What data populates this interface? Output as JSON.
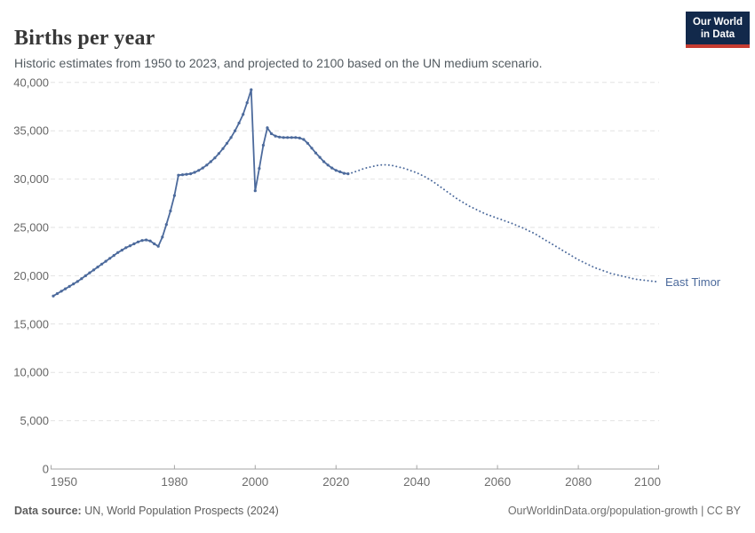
{
  "header": {
    "title": "Births per year",
    "subtitle": "Historic estimates from 1950 to 2023, and projected to 2100 based on the UN medium scenario."
  },
  "logo": {
    "line1": "Our World",
    "line2": "in Data"
  },
  "footer": {
    "source_label": "Data source:",
    "source_text": " UN, World Population Prospects (2024)",
    "credit": "OurWorldinData.org/population-growth | CC BY"
  },
  "colors": {
    "line": "#4c6a9c",
    "axis": "#a5a5a5",
    "grid": "#e2e2e2",
    "tick_text": "#666666",
    "logo_bg": "#12294b",
    "logo_accent": "#c63c31"
  },
  "chart_data": {
    "type": "line",
    "title": "Births per year",
    "xlabel": "",
    "ylabel": "",
    "xlim": [
      1950,
      2100
    ],
    "ylim": [
      0,
      40000
    ],
    "grid": "horizontal-dashed",
    "legend_position": "end-of-line-label",
    "x_ticks": [
      {
        "v": 1950,
        "label": "1950"
      },
      {
        "v": 1980,
        "label": "1980"
      },
      {
        "v": 2000,
        "label": "2000"
      },
      {
        "v": 2020,
        "label": "2020"
      },
      {
        "v": 2040,
        "label": "2040"
      },
      {
        "v": 2060,
        "label": "2060"
      },
      {
        "v": 2080,
        "label": "2080"
      },
      {
        "v": 2100,
        "label": "2100"
      }
    ],
    "y_ticks": [
      {
        "v": 0,
        "label": "0"
      },
      {
        "v": 5000,
        "label": "5,000"
      },
      {
        "v": 10000,
        "label": "10,000"
      },
      {
        "v": 15000,
        "label": "15,000"
      },
      {
        "v": 20000,
        "label": "20,000"
      },
      {
        "v": 25000,
        "label": "25,000"
      },
      {
        "v": 30000,
        "label": "30,000"
      },
      {
        "v": 35000,
        "label": "35,000"
      },
      {
        "v": 40000,
        "label": "40,000"
      }
    ],
    "annotation": {
      "text": "East Timor",
      "y": 19350
    },
    "series": [
      {
        "name": "East Timor — historic estimates (1950–2023)",
        "style": "solid",
        "markers": true,
        "points": [
          [
            1950,
            17900
          ],
          [
            1951,
            18150
          ],
          [
            1952,
            18400
          ],
          [
            1953,
            18650
          ],
          [
            1954,
            18900
          ],
          [
            1955,
            19150
          ],
          [
            1956,
            19400
          ],
          [
            1957,
            19700
          ],
          [
            1958,
            20000
          ],
          [
            1959,
            20300
          ],
          [
            1960,
            20600
          ],
          [
            1961,
            20900
          ],
          [
            1962,
            21200
          ],
          [
            1963,
            21500
          ],
          [
            1964,
            21800
          ],
          [
            1965,
            22100
          ],
          [
            1966,
            22400
          ],
          [
            1967,
            22650
          ],
          [
            1968,
            22900
          ],
          [
            1969,
            23100
          ],
          [
            1970,
            23300
          ],
          [
            1971,
            23500
          ],
          [
            1972,
            23650
          ],
          [
            1973,
            23700
          ],
          [
            1974,
            23600
          ],
          [
            1975,
            23300
          ],
          [
            1976,
            23050
          ],
          [
            1977,
            24000
          ],
          [
            1978,
            25300
          ],
          [
            1979,
            26700
          ],
          [
            1980,
            28300
          ],
          [
            1981,
            30400
          ],
          [
            1982,
            30450
          ],
          [
            1983,
            30500
          ],
          [
            1984,
            30550
          ],
          [
            1985,
            30700
          ],
          [
            1986,
            30900
          ],
          [
            1987,
            31150
          ],
          [
            1988,
            31450
          ],
          [
            1989,
            31800
          ],
          [
            1990,
            32200
          ],
          [
            1991,
            32650
          ],
          [
            1992,
            33150
          ],
          [
            1993,
            33700
          ],
          [
            1994,
            34300
          ],
          [
            1995,
            35000
          ],
          [
            1996,
            35800
          ],
          [
            1997,
            36700
          ],
          [
            1998,
            37900
          ],
          [
            1999,
            39250
          ],
          [
            2000,
            28800
          ],
          [
            2001,
            31100
          ],
          [
            2002,
            33500
          ],
          [
            2003,
            35300
          ],
          [
            2004,
            34700
          ],
          [
            2005,
            34450
          ],
          [
            2006,
            34350
          ],
          [
            2007,
            34300
          ],
          [
            2008,
            34300
          ],
          [
            2009,
            34300
          ],
          [
            2010,
            34300
          ],
          [
            2011,
            34250
          ],
          [
            2012,
            34100
          ],
          [
            2013,
            33700
          ],
          [
            2014,
            33200
          ],
          [
            2015,
            32700
          ],
          [
            2016,
            32250
          ],
          [
            2017,
            31800
          ],
          [
            2018,
            31450
          ],
          [
            2019,
            31150
          ],
          [
            2020,
            30900
          ],
          [
            2021,
            30750
          ],
          [
            2022,
            30600
          ],
          [
            2023,
            30550
          ]
        ]
      },
      {
        "name": "East Timor — UN medium scenario projection (2023–2100)",
        "style": "dotted",
        "markers": false,
        "points": [
          [
            2023,
            30550
          ],
          [
            2024,
            30650
          ],
          [
            2025,
            30800
          ],
          [
            2026,
            30950
          ],
          [
            2027,
            31100
          ],
          [
            2028,
            31200
          ],
          [
            2029,
            31300
          ],
          [
            2030,
            31400
          ],
          [
            2031,
            31450
          ],
          [
            2032,
            31480
          ],
          [
            2033,
            31450
          ],
          [
            2034,
            31400
          ],
          [
            2035,
            31300
          ],
          [
            2036,
            31200
          ],
          [
            2037,
            31100
          ],
          [
            2038,
            30950
          ],
          [
            2039,
            30800
          ],
          [
            2040,
            30650
          ],
          [
            2041,
            30450
          ],
          [
            2042,
            30250
          ],
          [
            2043,
            30000
          ],
          [
            2044,
            29750
          ],
          [
            2045,
            29450
          ],
          [
            2046,
            29150
          ],
          [
            2047,
            28850
          ],
          [
            2048,
            28550
          ],
          [
            2049,
            28250
          ],
          [
            2050,
            27950
          ],
          [
            2051,
            27700
          ],
          [
            2052,
            27450
          ],
          [
            2053,
            27200
          ],
          [
            2054,
            27000
          ],
          [
            2055,
            26800
          ],
          [
            2056,
            26600
          ],
          [
            2057,
            26400
          ],
          [
            2058,
            26250
          ],
          [
            2059,
            26100
          ],
          [
            2060,
            25950
          ],
          [
            2061,
            25800
          ],
          [
            2062,
            25650
          ],
          [
            2063,
            25500
          ],
          [
            2064,
            25350
          ],
          [
            2065,
            25150
          ],
          [
            2066,
            25000
          ],
          [
            2067,
            24800
          ],
          [
            2068,
            24600
          ],
          [
            2069,
            24400
          ],
          [
            2070,
            24150
          ],
          [
            2071,
            23900
          ],
          [
            2072,
            23650
          ],
          [
            2073,
            23400
          ],
          [
            2074,
            23150
          ],
          [
            2075,
            22900
          ],
          [
            2076,
            22650
          ],
          [
            2077,
            22400
          ],
          [
            2078,
            22150
          ],
          [
            2079,
            21900
          ],
          [
            2080,
            21650
          ],
          [
            2081,
            21450
          ],
          [
            2082,
            21250
          ],
          [
            2083,
            21050
          ],
          [
            2084,
            20850
          ],
          [
            2085,
            20700
          ],
          [
            2086,
            20550
          ],
          [
            2087,
            20400
          ],
          [
            2088,
            20250
          ],
          [
            2089,
            20150
          ],
          [
            2090,
            20050
          ],
          [
            2091,
            19950
          ],
          [
            2092,
            19850
          ],
          [
            2093,
            19750
          ],
          [
            2094,
            19650
          ],
          [
            2095,
            19600
          ],
          [
            2096,
            19550
          ],
          [
            2097,
            19500
          ],
          [
            2098,
            19450
          ],
          [
            2099,
            19400
          ],
          [
            2100,
            19350
          ]
        ]
      }
    ]
  }
}
